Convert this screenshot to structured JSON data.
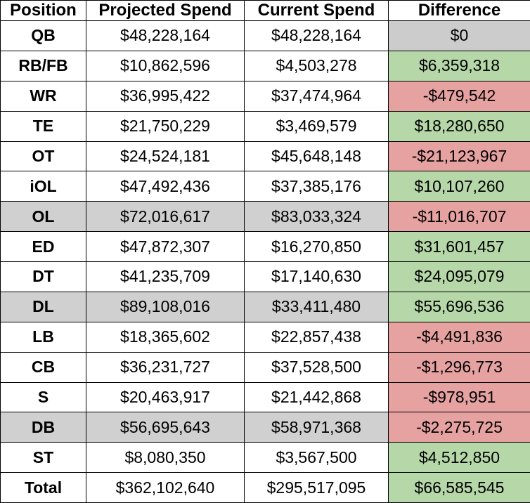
{
  "table": {
    "header": [
      "Position",
      "Projected Spend",
      "Current Spend",
      "Difference"
    ],
    "rows": [
      {
        "cells": [
          "QB",
          "$48,228,164",
          "$48,228,164",
          "$0"
        ],
        "diff_fill": "#cccccc"
      },
      {
        "cells": [
          "RB/FB",
          "$10,862,596",
          "$4,503,278",
          "$6,359,318"
        ],
        "diff_fill": "#b6d7a8"
      },
      {
        "cells": [
          "WR",
          "$36,995,422",
          "$37,474,964",
          "-$479,542"
        ],
        "diff_fill": "#e6a1a1"
      },
      {
        "cells": [
          "TE",
          "$21,750,229",
          "$3,469,579",
          "$18,280,650"
        ],
        "diff_fill": "#b6d7a8"
      },
      {
        "cells": [
          "OT",
          "$24,524,181",
          "$45,648,148",
          "-$21,123,967"
        ],
        "diff_fill": "#e6a1a1"
      },
      {
        "cells": [
          "iOL",
          "$47,492,436",
          "$37,385,176",
          "$10,107,260"
        ],
        "diff_fill": "#b6d7a8"
      },
      {
        "cells": [
          "OL",
          "$72,016,617",
          "$83,033,324",
          "-$11,016,707"
        ],
        "row_fill": "#d0d0d0",
        "diff_fill": "#e6a1a1"
      },
      {
        "cells": [
          "ED",
          "$47,872,307",
          "$16,270,850",
          "$31,601,457"
        ],
        "diff_fill": "#b6d7a8"
      },
      {
        "cells": [
          "DT",
          "$41,235,709",
          "$17,140,630",
          "$24,095,079"
        ],
        "diff_fill": "#b6d7a8"
      },
      {
        "cells": [
          "DL",
          "$89,108,016",
          "$33,411,480",
          "$55,696,536"
        ],
        "row_fill": "#d0d0d0",
        "diff_fill": "#b6d7a8"
      },
      {
        "cells": [
          "LB",
          "$18,365,602",
          "$22,857,438",
          "-$4,491,836"
        ],
        "diff_fill": "#e6a1a1"
      },
      {
        "cells": [
          "CB",
          "$36,231,727",
          "$37,528,500",
          "-$1,296,773"
        ],
        "diff_fill": "#e6a1a1"
      },
      {
        "cells": [
          "S",
          "$20,463,917",
          "$21,442,868",
          "-$978,951"
        ],
        "diff_fill": "#e6a1a1"
      },
      {
        "cells": [
          "DB",
          "$56,695,643",
          "$58,971,368",
          "-$2,275,725"
        ],
        "row_fill": "#d0d0d0",
        "diff_fill": "#e6a1a1"
      },
      {
        "cells": [
          "ST",
          "$8,080,350",
          "$3,567,500",
          "$4,512,850"
        ],
        "diff_fill": "#b6d7a8"
      },
      {
        "cells": [
          "Total",
          "$362,102,640",
          "$295,517,095",
          "$66,585,545"
        ],
        "diff_fill": "#b6d7a8"
      }
    ]
  }
}
